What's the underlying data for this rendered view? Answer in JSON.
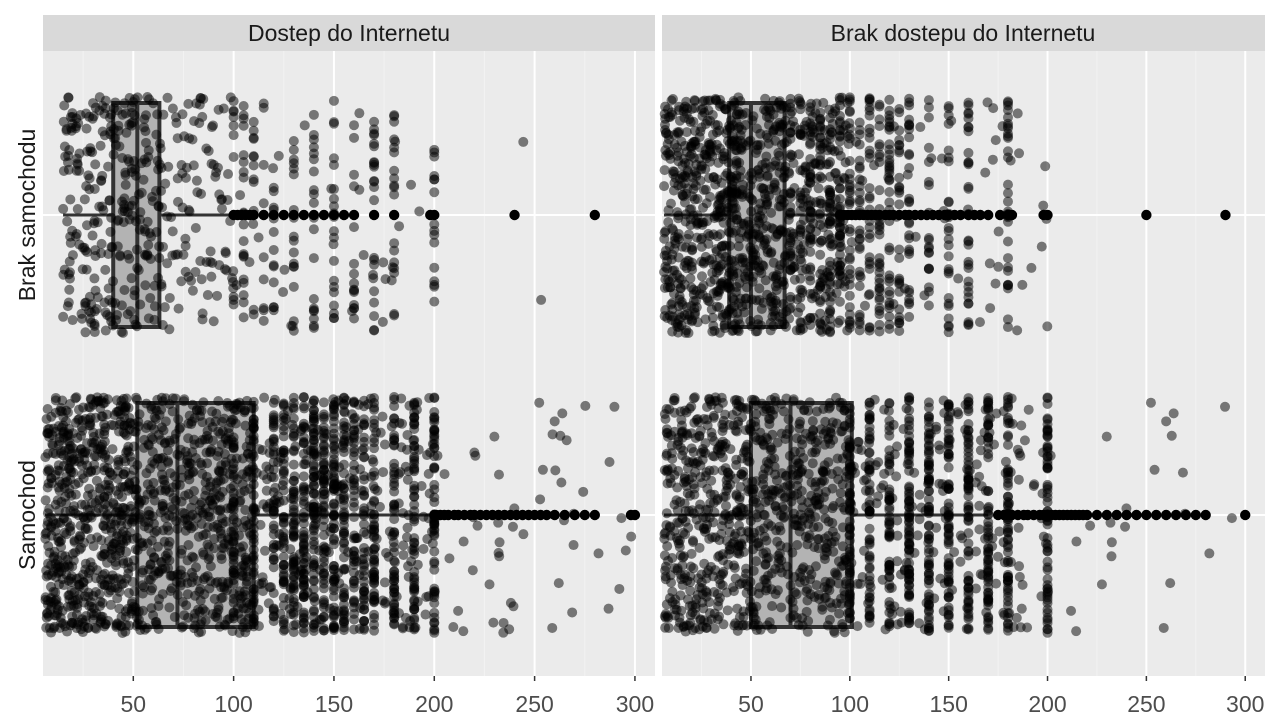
{
  "chart_data": {
    "type": "boxplot",
    "facets": [
      "Dostep do Internetu",
      "Brak dostepu do Internetu"
    ],
    "categories": [
      "Brak samochodu",
      "Samochod"
    ],
    "xlim": [
      5,
      310
    ],
    "x_ticks": [
      50,
      100,
      150,
      200,
      250,
      300
    ],
    "colors": {
      "panel_bg": "#ebebeb",
      "strip_bg": "#d9d9d9",
      "grid_major": "#ffffff",
      "grid_minor": "#f2f2f2",
      "box_fill": "#b3b3b3",
      "box_line": "#333333",
      "point": "#000000",
      "point_alpha": 0.5
    },
    "boxes": [
      {
        "facet": "Dostep do Internetu",
        "category": "Brak samochodu",
        "whisker_low": 15,
        "q1": 40,
        "median": 52,
        "q3": 63,
        "whisker_high": 100,
        "outliers": [
          100,
          102,
          104,
          106,
          108,
          110,
          115,
          120,
          125,
          130,
          135,
          140,
          145,
          150,
          155,
          160,
          170,
          180,
          198,
          200,
          240,
          280
        ]
      },
      {
        "facet": "Dostep do Internetu",
        "category": "Samochod",
        "whisker_low": 6,
        "q1": 52,
        "median": 72,
        "q3": 110,
        "whisker_high": 198,
        "outliers": [
          200,
          201,
          203,
          205,
          207,
          210,
          212,
          215,
          218,
          220,
          223,
          226,
          229,
          232,
          235,
          238,
          241,
          244,
          247,
          250,
          253,
          256,
          260,
          265,
          270,
          275,
          280,
          298,
          300
        ]
      },
      {
        "facet": "Brak dostepu do Internetu",
        "category": "Brak samochodu",
        "whisker_low": 6,
        "q1": 39,
        "median": 50,
        "q3": 67,
        "whisker_high": 93,
        "outliers": [
          95,
          97,
          99,
          101,
          103,
          105,
          107,
          109,
          111,
          113,
          115,
          118,
          120,
          122,
          125,
          128,
          130,
          133,
          136,
          139,
          142,
          145,
          148,
          150,
          153,
          156,
          160,
          163,
          166,
          170,
          176,
          180,
          182,
          198,
          200,
          250,
          290
        ]
      },
      {
        "facet": "Brak dostepu do Internetu",
        "category": "Samochod",
        "whisker_low": 6,
        "q1": 50,
        "median": 70,
        "q3": 101,
        "whisker_high": 170,
        "outliers": [
          175,
          178,
          180,
          182,
          185,
          188,
          190,
          193,
          196,
          198,
          200,
          202,
          204,
          206,
          208,
          210,
          212,
          214,
          216,
          218,
          220,
          225,
          230,
          235,
          240,
          245,
          250,
          255,
          260,
          265,
          270,
          275,
          280,
          300
        ]
      }
    ],
    "jitter_points": [
      {
        "facet": "Dostep do Internetu",
        "category": "Brak samochodu",
        "n": 600,
        "x_dist": [
          [
            15,
            40,
            0.35
          ],
          [
            40,
            65,
            0.35
          ],
          [
            65,
            100,
            0.22
          ],
          [
            100,
            200,
            0.07
          ],
          [
            200,
            290,
            0.01
          ]
        ],
        "discrete_x": [
          100,
          105,
          110,
          115,
          120,
          130,
          140,
          150,
          160,
          170,
          180,
          200
        ]
      },
      {
        "facet": "Dostep do Internetu",
        "category": "Samochod",
        "n": 2300,
        "x_dist": [
          [
            6,
            50,
            0.4
          ],
          [
            50,
            110,
            0.4
          ],
          [
            110,
            200,
            0.17
          ],
          [
            200,
            300,
            0.03
          ]
        ],
        "discrete_x": [
          100,
          110,
          120,
          125,
          130,
          135,
          140,
          145,
          150,
          155,
          160,
          165,
          170,
          180,
          190,
          200
        ]
      },
      {
        "facet": "Brak dostepu do Internetu",
        "category": "Brak samochodu",
        "n": 1500,
        "x_dist": [
          [
            6,
            40,
            0.42
          ],
          [
            40,
            67,
            0.32
          ],
          [
            67,
            100,
            0.2
          ],
          [
            100,
            200,
            0.06
          ]
        ],
        "discrete_x": [
          70,
          75,
          80,
          85,
          90,
          95,
          100,
          105,
          110,
          115,
          120,
          125,
          130,
          140,
          150,
          160,
          180
        ]
      },
      {
        "facet": "Brak dostepu do Internetu",
        "category": "Samochod",
        "n": 1700,
        "x_dist": [
          [
            6,
            50,
            0.4
          ],
          [
            50,
            101,
            0.42
          ],
          [
            101,
            200,
            0.16
          ],
          [
            200,
            300,
            0.02
          ]
        ],
        "discrete_x": [
          100,
          110,
          120,
          130,
          140,
          150,
          160,
          170,
          180,
          200
        ]
      }
    ]
  }
}
